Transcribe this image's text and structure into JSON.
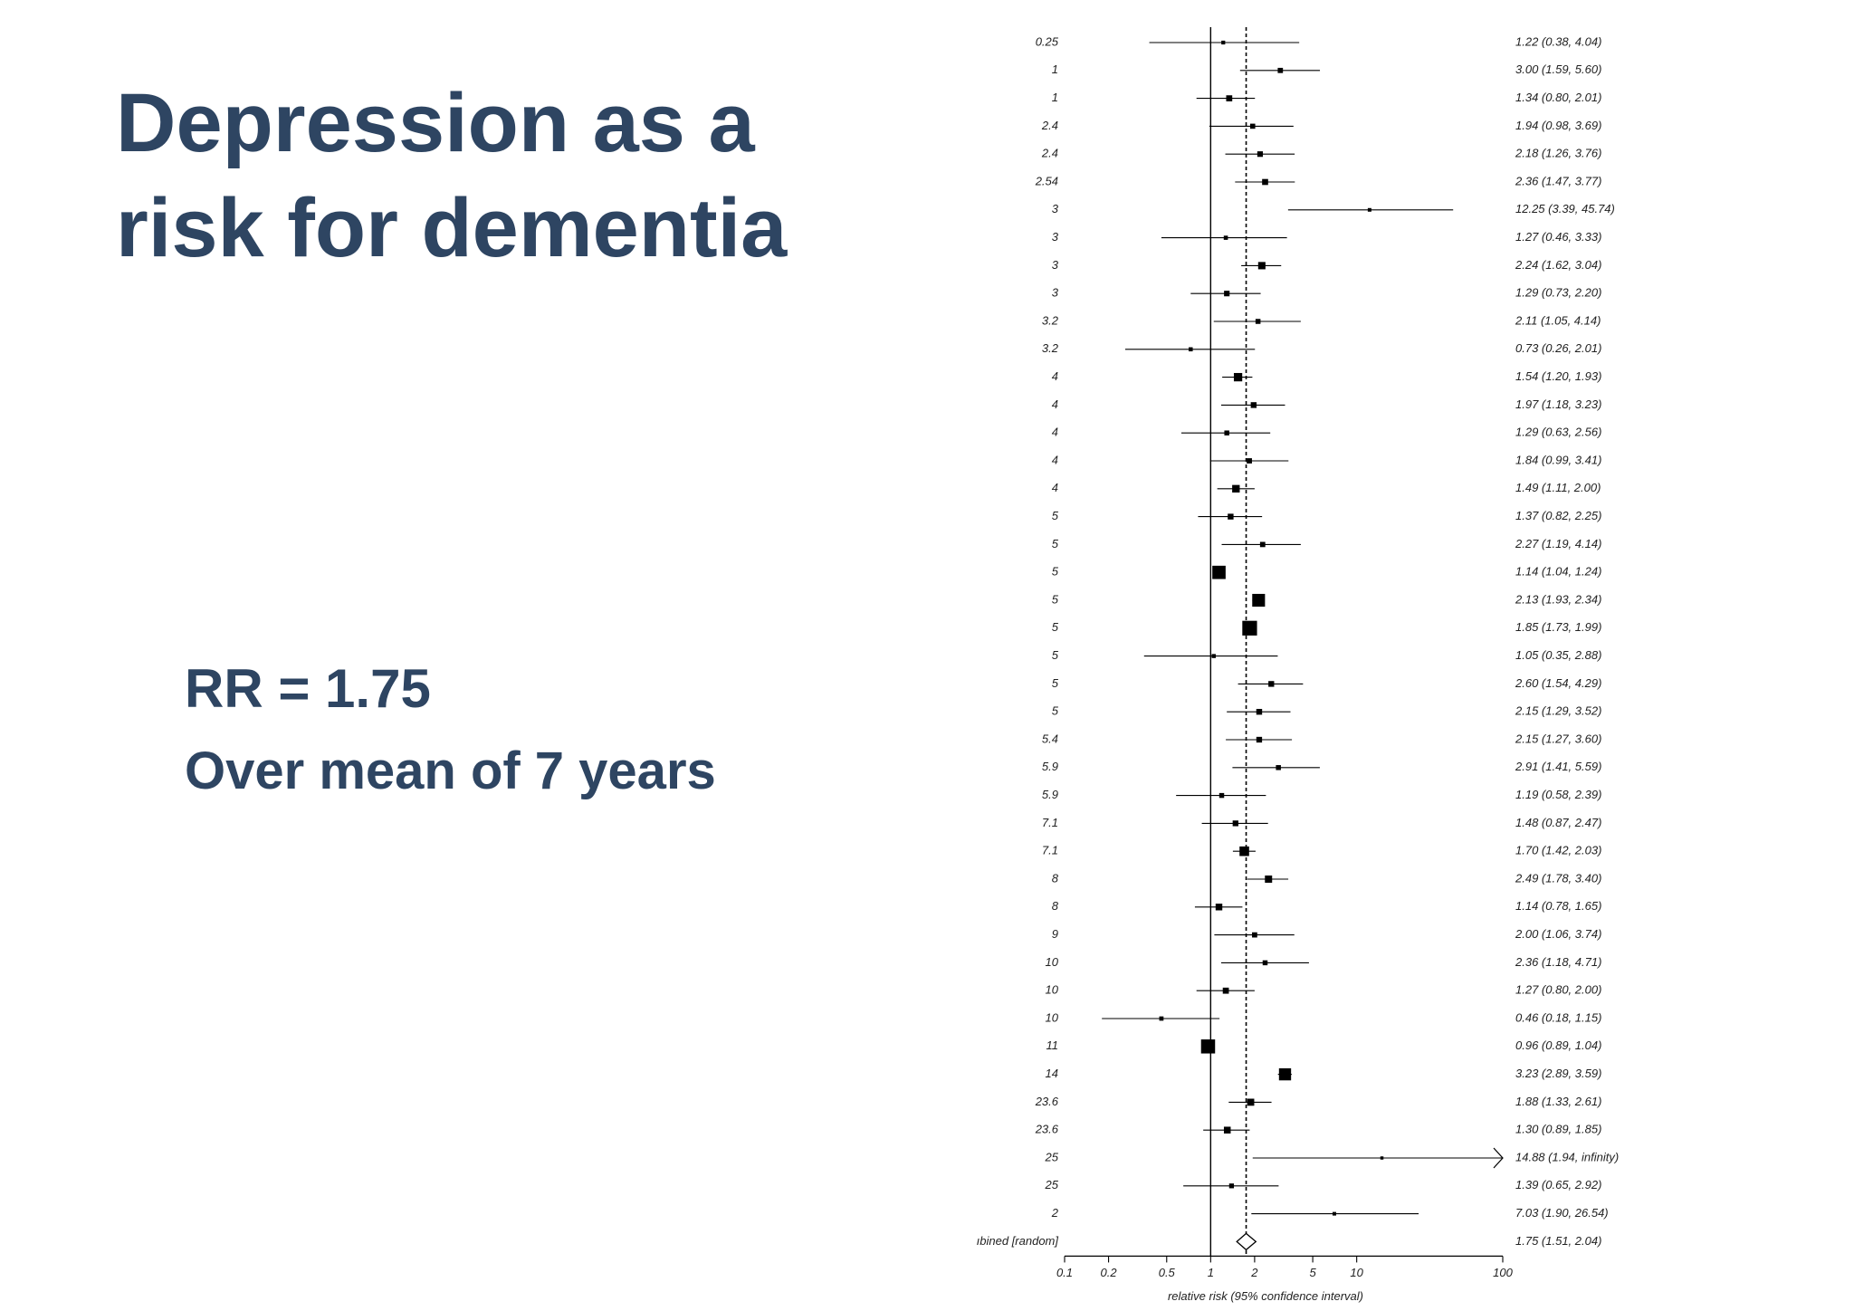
{
  "slide": {
    "title_line1": "Depression as a",
    "title_line2": "risk for dementia",
    "rr_text": "RR  = 1.75",
    "duration_text": "Over mean of 7 years"
  },
  "colors": {
    "title": "#2e4562",
    "ink": "#000000"
  },
  "chart_data": {
    "type": "forest",
    "xlabel": "relative risk (95% confidence interval)",
    "x_scale": "log",
    "xlim": [
      0.1,
      100
    ],
    "x_ticks": [
      0.1,
      0.2,
      0.5,
      1,
      2,
      5,
      10,
      100
    ],
    "x_tick_labels": [
      "0.1",
      "0.2",
      "0.5",
      "1",
      "2",
      "5",
      "10",
      "100"
    ],
    "reference_line": 1,
    "pooled_line": 1.75,
    "studies": [
      {
        "label": "0.25",
        "rr": 1.22,
        "lo": 0.38,
        "hi": 4.04,
        "text": "1.22 (0.38, 4.04)"
      },
      {
        "label": "1",
        "rr": 3.0,
        "lo": 1.59,
        "hi": 5.6,
        "text": "3.00 (1.59, 5.60)"
      },
      {
        "label": "1",
        "rr": 1.34,
        "lo": 0.8,
        "hi": 2.01,
        "text": "1.34 (0.80, 2.01)"
      },
      {
        "label": "2.4",
        "rr": 1.94,
        "lo": 0.98,
        "hi": 3.69,
        "text": "1.94 (0.98, 3.69)"
      },
      {
        "label": "2.4",
        "rr": 2.18,
        "lo": 1.26,
        "hi": 3.76,
        "text": "2.18 (1.26, 3.76)"
      },
      {
        "label": "2.54",
        "rr": 2.36,
        "lo": 1.47,
        "hi": 3.77,
        "text": "2.36 (1.47, 3.77)"
      },
      {
        "label": "3",
        "rr": 12.25,
        "lo": 3.39,
        "hi": 45.74,
        "text": "12.25 (3.39, 45.74)"
      },
      {
        "label": "3",
        "rr": 1.27,
        "lo": 0.46,
        "hi": 3.33,
        "text": "1.27 (0.46, 3.33)"
      },
      {
        "label": "3",
        "rr": 2.24,
        "lo": 1.62,
        "hi": 3.04,
        "text": "2.24 (1.62, 3.04)"
      },
      {
        "label": "3",
        "rr": 1.29,
        "lo": 0.73,
        "hi": 2.2,
        "text": "1.29 (0.73, 2.20)"
      },
      {
        "label": "3.2",
        "rr": 2.11,
        "lo": 1.05,
        "hi": 4.14,
        "text": "2.11 (1.05, 4.14)"
      },
      {
        "label": "3.2",
        "rr": 0.73,
        "lo": 0.26,
        "hi": 2.01,
        "text": "0.73 (0.26, 2.01)"
      },
      {
        "label": "4",
        "rr": 1.54,
        "lo": 1.2,
        "hi": 1.93,
        "text": "1.54 (1.20, 1.93)"
      },
      {
        "label": "4",
        "rr": 1.97,
        "lo": 1.18,
        "hi": 3.23,
        "text": "1.97 (1.18, 3.23)"
      },
      {
        "label": "4",
        "rr": 1.29,
        "lo": 0.63,
        "hi": 2.56,
        "text": "1.29 (0.63, 2.56)"
      },
      {
        "label": "4",
        "rr": 1.84,
        "lo": 0.99,
        "hi": 3.41,
        "text": "1.84 (0.99, 3.41)"
      },
      {
        "label": "4",
        "rr": 1.49,
        "lo": 1.11,
        "hi": 2.0,
        "text": "1.49 (1.11, 2.00)"
      },
      {
        "label": "5",
        "rr": 1.37,
        "lo": 0.82,
        "hi": 2.25,
        "text": "1.37 (0.82, 2.25)"
      },
      {
        "label": "5",
        "rr": 2.27,
        "lo": 1.19,
        "hi": 4.14,
        "text": "2.27 (1.19, 4.14)"
      },
      {
        "label": "5",
        "rr": 1.14,
        "lo": 1.04,
        "hi": 1.24,
        "text": "1.14 (1.04, 1.24)"
      },
      {
        "label": "5",
        "rr": 2.13,
        "lo": 1.93,
        "hi": 2.34,
        "text": "2.13 (1.93, 2.34)"
      },
      {
        "label": "5",
        "rr": 1.85,
        "lo": 1.73,
        "hi": 1.99,
        "text": "1.85 (1.73, 1.99)"
      },
      {
        "label": "5",
        "rr": 1.05,
        "lo": 0.35,
        "hi": 2.88,
        "text": "1.05 (0.35, 2.88)"
      },
      {
        "label": "5",
        "rr": 2.6,
        "lo": 1.54,
        "hi": 4.29,
        "text": "2.60 (1.54, 4.29)"
      },
      {
        "label": "5",
        "rr": 2.15,
        "lo": 1.29,
        "hi": 3.52,
        "text": "2.15 (1.29, 3.52)"
      },
      {
        "label": "5.4",
        "rr": 2.15,
        "lo": 1.27,
        "hi": 3.6,
        "text": "2.15 (1.27, 3.60)"
      },
      {
        "label": "5.9",
        "rr": 2.91,
        "lo": 1.41,
        "hi": 5.59,
        "text": "2.91 (1.41, 5.59)"
      },
      {
        "label": "5.9",
        "rr": 1.19,
        "lo": 0.58,
        "hi": 2.39,
        "text": "1.19 (0.58, 2.39)"
      },
      {
        "label": "7.1",
        "rr": 1.48,
        "lo": 0.87,
        "hi": 2.47,
        "text": "1.48 (0.87, 2.47)"
      },
      {
        "label": "7.1",
        "rr": 1.7,
        "lo": 1.42,
        "hi": 2.03,
        "text": "1.70 (1.42, 2.03)"
      },
      {
        "label": "8",
        "rr": 2.49,
        "lo": 1.78,
        "hi": 3.4,
        "text": "2.49 (1.78, 3.40)"
      },
      {
        "label": "8",
        "rr": 1.14,
        "lo": 0.78,
        "hi": 1.65,
        "text": "1.14 (0.78, 1.65)"
      },
      {
        "label": "9",
        "rr": 2.0,
        "lo": 1.06,
        "hi": 3.74,
        "text": "2.00 (1.06, 3.74)"
      },
      {
        "label": "10",
        "rr": 2.36,
        "lo": 1.18,
        "hi": 4.71,
        "text": "2.36 (1.18, 4.71)"
      },
      {
        "label": "10",
        "rr": 1.27,
        "lo": 0.8,
        "hi": 2.0,
        "text": "1.27 (0.80, 2.00)"
      },
      {
        "label": "10",
        "rr": 0.46,
        "lo": 0.18,
        "hi": 1.15,
        "text": "0.46 (0.18, 1.15)"
      },
      {
        "label": "11",
        "rr": 0.96,
        "lo": 0.89,
        "hi": 1.04,
        "text": "0.96 (0.89, 1.04)"
      },
      {
        "label": "14",
        "rr": 3.23,
        "lo": 2.89,
        "hi": 3.59,
        "text": "3.23 (2.89, 3.59)"
      },
      {
        "label": "23.6",
        "rr": 1.88,
        "lo": 1.33,
        "hi": 2.61,
        "text": "1.88 (1.33, 2.61)"
      },
      {
        "label": "23.6",
        "rr": 1.3,
        "lo": 0.89,
        "hi": 1.85,
        "text": "1.30 (0.89, 1.85)"
      },
      {
        "label": "25",
        "rr": 14.88,
        "lo": 1.94,
        "hi": null,
        "text": "14.88 (1.94, infinity)"
      },
      {
        "label": "25",
        "rr": 1.39,
        "lo": 0.65,
        "hi": 2.92,
        "text": "1.39 (0.65, 2.92)"
      },
      {
        "label": "2",
        "rr": 7.03,
        "lo": 1.9,
        "hi": 26.54,
        "text": "7.03 (1.90, 26.54)"
      }
    ],
    "pooled": {
      "label": "ıbined [random]",
      "rr": 1.75,
      "lo": 1.51,
      "hi": 2.04,
      "text": "1.75 (1.51, 2.04)"
    }
  }
}
